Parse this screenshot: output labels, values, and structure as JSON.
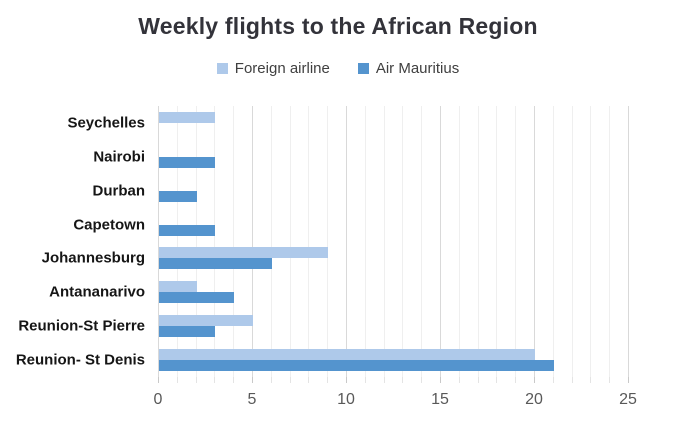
{
  "title": "Weekly flights to the African Region",
  "legend": {
    "items": [
      {
        "label": "Foreign airline",
        "color": "#aec9ea"
      },
      {
        "label": "Air Mauritius",
        "color": "#5494ce"
      }
    ]
  },
  "axis": {
    "x_tick_labels": [
      "0",
      "5",
      "10",
      "15",
      "20",
      "25"
    ]
  },
  "chart_data": {
    "type": "bar",
    "orientation": "horizontal",
    "title": "Weekly flights to the African Region",
    "categories": [
      "Seychelles",
      "Nairobi",
      "Durban",
      "Capetown",
      "Johannesburg",
      "Antananarivo",
      "Reunion-St Pierre",
      "Reunion- St Denis"
    ],
    "series": [
      {
        "name": "Foreign airline",
        "color": "#aec9ea",
        "values": [
          3,
          0,
          0,
          0,
          9,
          2,
          5,
          20
        ]
      },
      {
        "name": "Air Mauritius",
        "color": "#5494ce",
        "values": [
          0,
          3,
          2,
          3,
          6,
          4,
          3,
          21
        ]
      }
    ],
    "xlabel": "",
    "ylabel": "",
    "xlim": [
      0,
      25
    ],
    "x_major_ticks": [
      0,
      5,
      10,
      15,
      20,
      25
    ],
    "x_minor_tick_step": 1,
    "grid": "vertical; minor lines every 1 unit, major lines every 5 units",
    "legend_position": "top-center",
    "background": "#ffffff"
  }
}
